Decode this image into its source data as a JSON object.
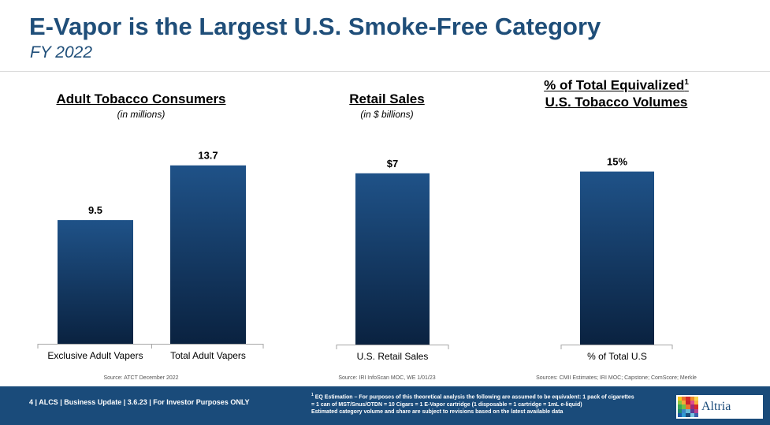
{
  "header": {
    "title": "E-Vapor is the Largest U.S. Smoke-Free Category",
    "subtitle": "FY 2022"
  },
  "panels": [
    {
      "heading_line1": "Adult Tobacco Consumers",
      "heading_line2": "",
      "heading_sup": "",
      "unit": "(in millions)",
      "source": "Source: ATCT December 2022"
    },
    {
      "heading_line1": "Retail Sales",
      "heading_line2": "",
      "heading_sup": "",
      "unit": "(in $ billions)",
      "source": "Source: IRI InfoScan MOC, WE 1/01/23"
    },
    {
      "heading_line1": "% of Total Equivalized",
      "heading_line2": "U.S. Tobacco Volumes",
      "heading_sup": "1",
      "unit": "",
      "source": "Sources: CMII Estimates; IRI MOC; Capstone; ComScore; Merkle"
    }
  ],
  "chart_data": [
    {
      "type": "bar",
      "categories": [
        "Exclusive Adult Vapers",
        "Total Adult Vapers"
      ],
      "values": [
        9.5,
        13.7
      ],
      "data_labels": [
        "9.5",
        "13.7"
      ],
      "title": "Adult Tobacco Consumers",
      "ylabel": "(in millions)",
      "ylim": [
        0,
        15.5
      ],
      "grid": false,
      "color": "#1f5288"
    },
    {
      "type": "bar",
      "categories": [
        "U.S. Retail Sales"
      ],
      "values": [
        7
      ],
      "data_labels": [
        "$7"
      ],
      "title": "Retail Sales",
      "ylabel": "(in $ billions)",
      "ylim": [
        0,
        8.25
      ],
      "grid": false,
      "color": "#1f5288"
    },
    {
      "type": "bar",
      "categories": [
        "% of Total U.S"
      ],
      "values": [
        15
      ],
      "data_labels": [
        "15%"
      ],
      "title": "% of Total Equivalized U.S. Tobacco Volumes",
      "ylabel": "",
      "ylim": [
        0,
        17.5
      ],
      "grid": false,
      "color": "#1f5288"
    }
  ],
  "footer": {
    "left_text": "4 | ALCS | Business Update | 3.6.23 | For Investor Purposes ONLY",
    "footnote_sup": "1",
    "footnote_line1": "EQ Estimation – For purposes of this theoretical analysis the following are assumed to be equivalent: 1 pack of cigarettes",
    "footnote_line2": "= 1 can of MST/Snus/OTDN = 10 Cigars = 1 E-Vapor cartridge (1 disposable = 1 cartridge = 1mL e-liquid)",
    "footnote_line3": "Estimated category volume and share are subject to revisions based on the latest available data",
    "logo_text": "Altria"
  },
  "colors": {
    "brand_blue": "#1f4e79",
    "bar_top": "#1f5288",
    "bar_bottom": "#0a2240",
    "footer_bg": "#1a4b7a"
  }
}
